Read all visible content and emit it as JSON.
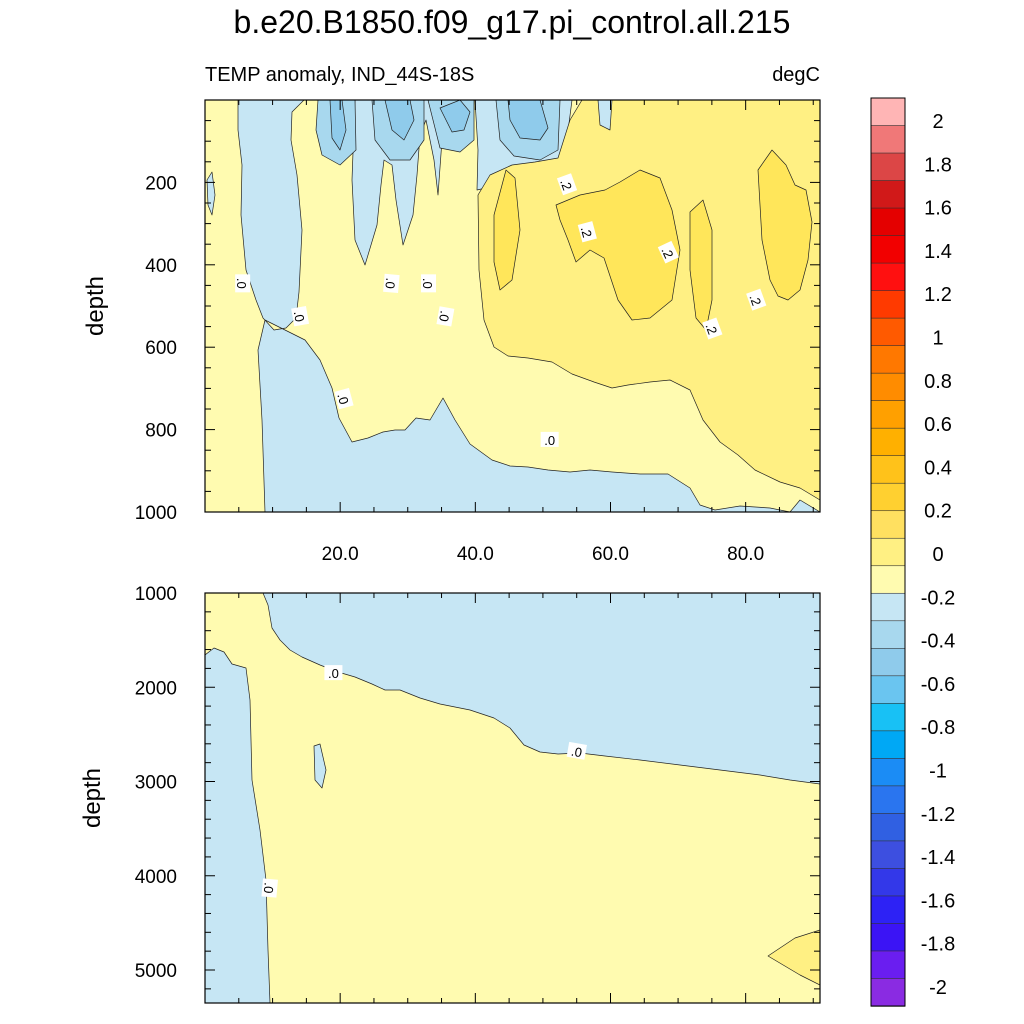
{
  "title": "b.e20.B1850.f09_g17.pi_control.all.215",
  "subtitle_left": "TEMP anomaly, IND_44S-18S",
  "subtitle_right": "degC",
  "colors": {
    "neg": "#c6e6f4",
    "pos0": "#fffbb0",
    "pos1": "#fff083",
    "pos2": "#ffe65a",
    "line": "#222222"
  },
  "chart_data": [
    {
      "type": "heatmap",
      "panel": "upper",
      "xlabel": "",
      "ylabel": "depth",
      "xlim": [
        0,
        91
      ],
      "ylim": [
        1000,
        0
      ],
      "x_ticks": [
        20,
        40,
        60,
        80
      ],
      "x_tick_labels": [
        "20.0",
        "40.0",
        "60.0",
        "80.0"
      ],
      "y_ticks": [
        200,
        400,
        600,
        800,
        1000
      ],
      "y_tick_labels": [
        "200",
        "400",
        "600",
        "800",
        "1000"
      ],
      "contour_labels": [
        {
          "text": ".0",
          "x": 5.5,
          "y": 445,
          "angle": 90
        },
        {
          "text": ".0",
          "x": 14,
          "y": 525,
          "angle": 80
        },
        {
          "text": ".0",
          "x": 20.5,
          "y": 725,
          "angle": 75
        },
        {
          "text": ".0",
          "x": 27.5,
          "y": 445,
          "angle": 95
        },
        {
          "text": ".0",
          "x": 33,
          "y": 445,
          "angle": 90
        },
        {
          "text": ".0",
          "x": 35.5,
          "y": 525,
          "angle": 100
        },
        {
          "text": ".0",
          "x": 51,
          "y": 825,
          "angle": 0
        },
        {
          "text": ".2",
          "x": 53.5,
          "y": 205,
          "angle": 70
        },
        {
          "text": ".2",
          "x": 56.5,
          "y": 320,
          "angle": 75
        },
        {
          "text": ".2",
          "x": 68.5,
          "y": 370,
          "angle": 65
        },
        {
          "text": ".2",
          "x": 75,
          "y": 555,
          "angle": 70
        },
        {
          "text": ".2",
          "x": 81.5,
          "y": 485,
          "angle": 70
        }
      ]
    },
    {
      "type": "heatmap",
      "panel": "lower",
      "xlabel": "",
      "ylabel": "depth",
      "xlim": [
        0,
        91
      ],
      "ylim": [
        5350,
        1000
      ],
      "y_ticks": [
        1000,
        2000,
        3000,
        4000,
        5000
      ],
      "y_tick_labels": [
        "1000",
        "2000",
        "3000",
        "4000",
        "5000"
      ],
      "contour_labels": [
        {
          "text": ".0",
          "x": 19,
          "y": 1850,
          "angle": 0
        },
        {
          "text": ".0",
          "x": 55,
          "y": 2680,
          "angle": 10
        },
        {
          "text": ".0",
          "x": 9.5,
          "y": 4130,
          "angle": 95
        }
      ]
    }
  ],
  "colorbar": {
    "labels": [
      "2",
      "1.8",
      "1.6",
      "1.4",
      "1.2",
      "1",
      "0.8",
      "0.6",
      "0.4",
      "0.2",
      "0",
      "-0.2",
      "-0.4",
      "-0.6",
      "-0.8",
      "-1",
      "-1.2",
      "-1.4",
      "-1.6",
      "-1.8",
      "-2"
    ],
    "colors": [
      "#ffb5b5",
      "#f07878",
      "#dc4646",
      "#d11919",
      "#e40000",
      "#f20000",
      "#ff1010",
      "#ff3a00",
      "#ff5a00",
      "#ff7800",
      "#ff8c00",
      "#ffa000",
      "#ffb000",
      "#ffc21a",
      "#ffd030",
      "#ffe060",
      "#fff083",
      "#fffbb0",
      "#c6e6f4",
      "#a8d8ee",
      "#8fcbeb",
      "#6ac5f0",
      "#18c1f5",
      "#00a8f5",
      "#1b8cf5",
      "#2a75ef",
      "#3060e2",
      "#3d4fe0",
      "#3338e9",
      "#2d22f5",
      "#3b14f5",
      "#6a1ef0",
      "#8a2be2"
    ]
  }
}
